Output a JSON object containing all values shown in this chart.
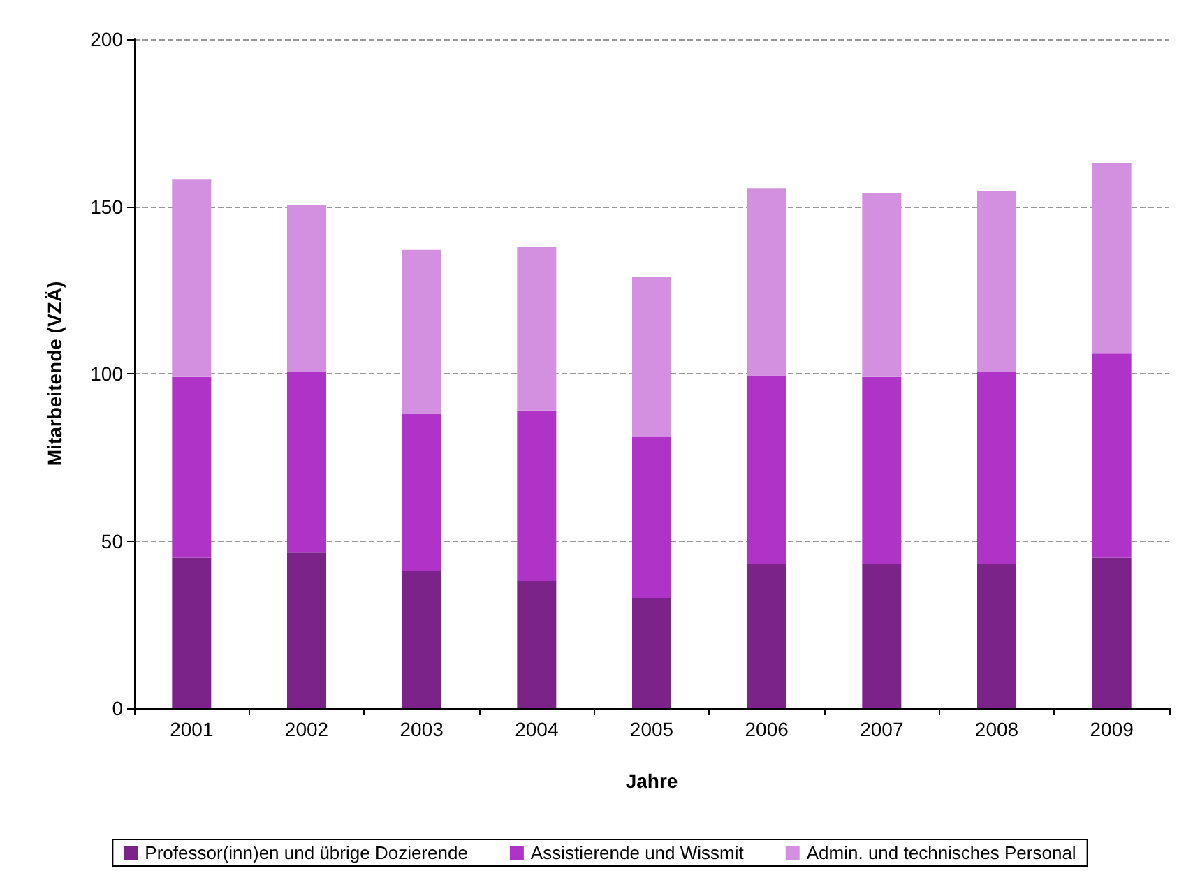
{
  "chart_data": {
    "type": "bar",
    "stacked": true,
    "xlabel": "Jahre",
    "ylabel": "Mitarbeitende (VZÄ)",
    "categories": [
      "2001",
      "2002",
      "2003",
      "2004",
      "2005",
      "2006",
      "2007",
      "2008",
      "2009"
    ],
    "series": [
      {
        "name": "Professor(inn)en und übrige Dozierende",
        "color": "#7b2388",
        "values": [
          45,
          46.5,
          41,
          38,
          33,
          43,
          43,
          43,
          45
        ]
      },
      {
        "name": "Assistierende und Wissmit",
        "color": "#b033c8",
        "values": [
          54,
          54,
          47,
          51,
          48,
          56.5,
          56,
          57.5,
          61
        ]
      },
      {
        "name": "Admin. und technisches Personal",
        "color": "#d490e0",
        "values": [
          59,
          50,
          49,
          49,
          48,
          56,
          55,
          54,
          57
        ]
      }
    ],
    "ylim": [
      0,
      200
    ],
    "yticks": [
      0,
      50,
      100,
      150,
      200
    ],
    "grid": "y",
    "legend": "bottom"
  }
}
